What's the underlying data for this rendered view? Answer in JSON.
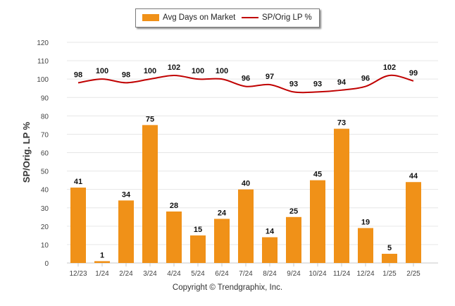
{
  "chart_data": {
    "type": "bar",
    "categories": [
      "12/23",
      "1/24",
      "2/24",
      "3/24",
      "4/24",
      "5/24",
      "6/24",
      "7/24",
      "8/24",
      "9/24",
      "10/24",
      "11/24",
      "12/24",
      "1/25",
      "2/25"
    ],
    "series": [
      {
        "name": "Avg Days on Market",
        "type": "bar",
        "color": "#f09118",
        "values": [
          41,
          1,
          34,
          75,
          28,
          15,
          24,
          40,
          14,
          25,
          45,
          73,
          19,
          5,
          44
        ]
      },
      {
        "name": "SP/Orig LP %",
        "type": "line",
        "color": "#c00000",
        "values": [
          98,
          100,
          98,
          100,
          102,
          100,
          100,
          96,
          97,
          93,
          93,
          94,
          96,
          102,
          99
        ]
      }
    ],
    "ylabel": "SP/Orig. LP %",
    "ylim": [
      0,
      120
    ],
    "yticks": [
      0,
      10,
      20,
      30,
      40,
      50,
      60,
      70,
      80,
      90,
      100,
      110,
      120
    ],
    "grid": true,
    "legend": "top-center"
  },
  "legend": {
    "bar_label": "Avg Days on Market",
    "line_label": "SP/Orig LP %",
    "bar_color": "#f09118",
    "line_color": "#c00000"
  },
  "footer": {
    "copyright": "Copyright © Trendgraphix, Inc."
  }
}
